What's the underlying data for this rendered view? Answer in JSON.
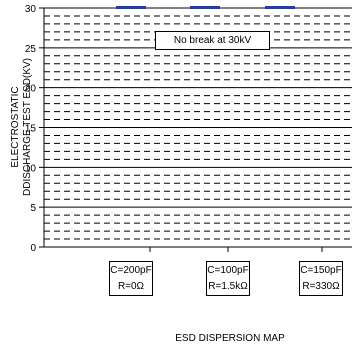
{
  "chart_data": {
    "type": "bar",
    "title": "",
    "xlabel": "ESD DISPERSION MAP",
    "ylabel_lines": [
      "ELECTROSTATIC",
      "DDISCHARGE TEST ESD(KV)"
    ],
    "ylim": [
      0,
      30
    ],
    "yticks": [
      0,
      5,
      10,
      15,
      20,
      25,
      30
    ],
    "grid": true,
    "annotation": "No break at 30kV",
    "categories": [
      {
        "line1": "C=200pF",
        "line2": "R=0Ω"
      },
      {
        "line1": "C=100pF",
        "line2": "R=1.5kΩ"
      },
      {
        "line1": "C=150pF",
        "line2": "R=330Ω"
      }
    ],
    "values": [
      30,
      30,
      30
    ],
    "bar_color": "#1f3bb3"
  }
}
